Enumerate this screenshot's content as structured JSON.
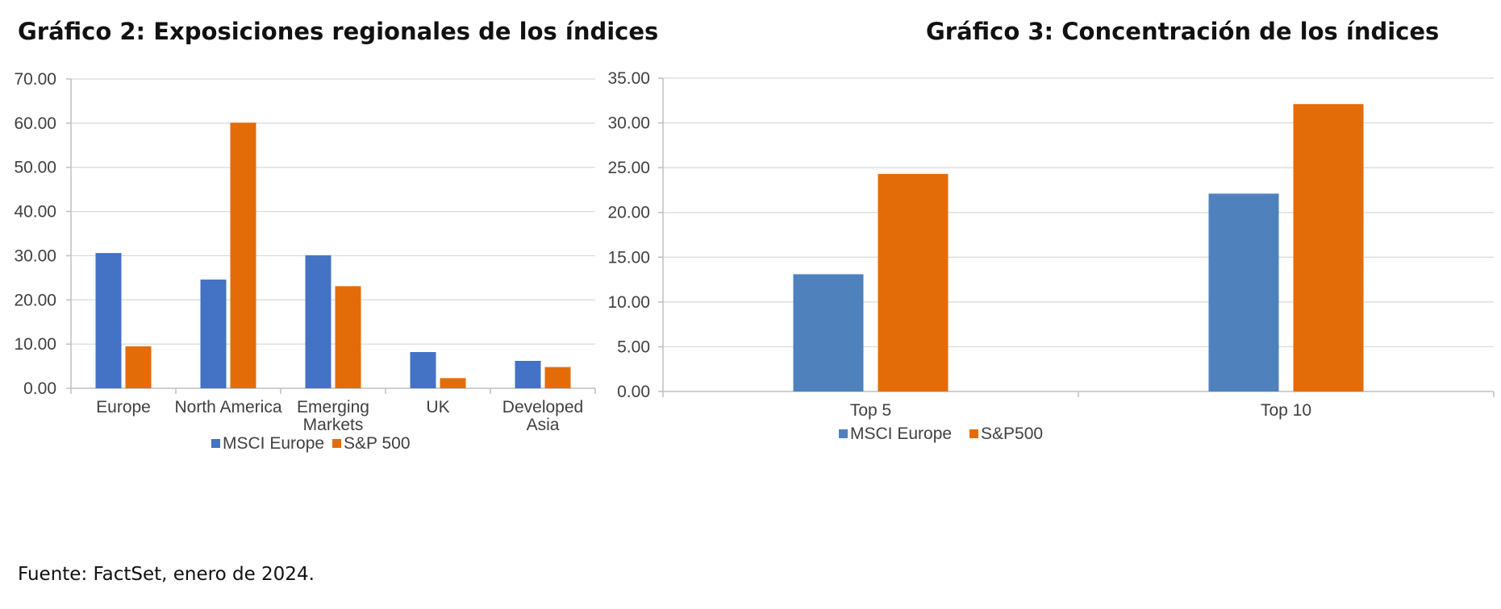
{
  "titles": {
    "left": "Gráfico 2: Exposiciones regionales de los índices",
    "right": "Gráfico 3: Concentración de los índices"
  },
  "source": "Fuente: FactSet, enero de 2024.",
  "colors": {
    "left_msci": "#4472C4",
    "left_sp": "#E36C09",
    "right_msci": "#4F81BD",
    "right_sp": "#E36C09",
    "grid": "#D9D9D9",
    "axis": "#BFBFBF"
  },
  "chart_data": [
    {
      "type": "bar",
      "title": "Gráfico 2: Exposiciones regionales de los índices",
      "categories": [
        [
          "Europe"
        ],
        [
          "North America"
        ],
        [
          "Emerging",
          "Markets"
        ],
        [
          "UK"
        ],
        [
          "Developed",
          "Asia"
        ]
      ],
      "series": [
        {
          "name": "MSCI Europe",
          "values": [
            30.6,
            24.6,
            30.1,
            8.2,
            6.2
          ],
          "color": "#4472C4"
        },
        {
          "name": "S&P 500",
          "values": [
            9.5,
            60.1,
            23.1,
            2.3,
            4.8
          ],
          "color": "#E36C09"
        }
      ],
      "yticks": [
        "0.00",
        "10.00",
        "20.00",
        "30.00",
        "40.00",
        "50.00",
        "60.00",
        "70.00"
      ],
      "ylim": [
        0,
        70
      ],
      "legend": "bottom",
      "grid": true
    },
    {
      "type": "bar",
      "title": "Gráfico 3: Concentración de los índices",
      "categories": [
        [
          "Top 5"
        ],
        [
          "Top 10"
        ]
      ],
      "series": [
        {
          "name": "MSCI Europe",
          "values": [
            13.1,
            22.1
          ],
          "color": "#4F81BD"
        },
        {
          "name": "S&P500",
          "values": [
            24.3,
            32.1
          ],
          "color": "#E36C09"
        }
      ],
      "yticks": [
        "0.00",
        "5.00",
        "10.00",
        "15.00",
        "20.00",
        "25.00",
        "30.00",
        "35.00"
      ],
      "ylim": [
        0,
        35
      ],
      "legend": "bottom",
      "grid": true
    }
  ]
}
